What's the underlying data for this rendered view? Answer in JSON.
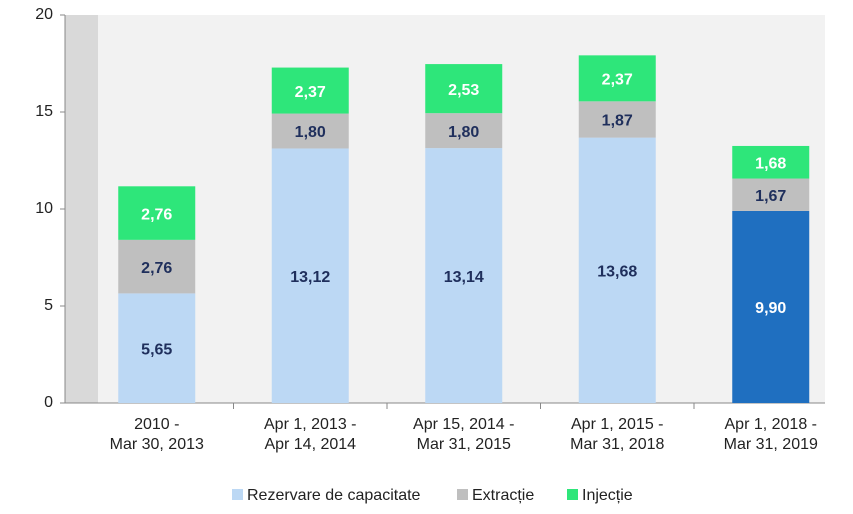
{
  "chart_data": {
    "type": "stacked_bar",
    "categories": [
      "2010 -\nMar 30, 2013",
      "Apr 1, 2013 -\nApr 14, 2014",
      "Apr 15, 2014 -\nMar 31, 2015",
      "Apr 1, 2015 -\nMar 31, 2018",
      "Apr 1, 2018 -\nMar 31, 2019"
    ],
    "series": [
      {
        "name": "Rezervare de capacitate",
        "color": "#bcd8f4",
        "colors": [
          "#bcd8f4",
          "#bcd8f4",
          "#bcd8f4",
          "#bcd8f4",
          "#1f6fc0"
        ],
        "values": [
          5.65,
          13.12,
          13.14,
          13.68,
          9.9
        ],
        "value_labels": [
          "5,65",
          "13,12",
          "13,14",
          "13,68",
          "9,90"
        ]
      },
      {
        "name": "Extracție",
        "color": "#bfbfbf",
        "values": [
          2.76,
          1.8,
          1.8,
          1.87,
          1.67
        ],
        "value_labels": [
          "2,76",
          "1,80",
          "1,80",
          "1,87",
          "1,67"
        ]
      },
      {
        "name": "Injecție",
        "color": "#2ee67a",
        "values": [
          2.76,
          2.37,
          2.53,
          2.37,
          1.68
        ],
        "value_labels": [
          "2,76",
          "2,37",
          "2,53",
          "2,37",
          "1,68"
        ]
      }
    ],
    "ylim": [
      0,
      20
    ],
    "yticks": [
      0,
      5,
      10,
      15,
      20
    ],
    "legend": "bottom"
  }
}
